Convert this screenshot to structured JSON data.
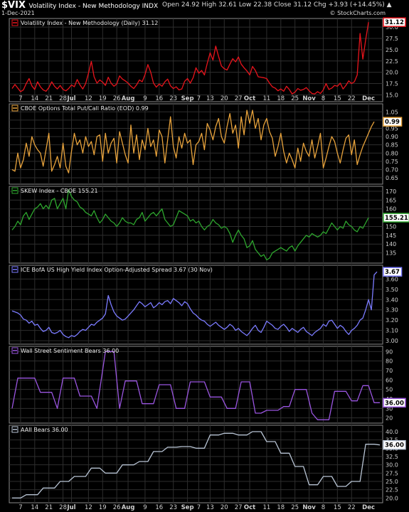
{
  "header": {
    "symbol": "$VIX",
    "name": "Volatility Index - New Methodology INDX",
    "date": "1-Dec-2021",
    "ohlc": "Open 24.92  High 32.61  Low 22.38  Close 31.12  Chg +3.93 (+14.45%) ▲",
    "credit": "© StockCharts.com"
  },
  "colors": {
    "background": "#000000",
    "grid": "#2e2e2e",
    "panel_border": "#8a8a8a"
  },
  "x_axis": {
    "labels": [
      {
        "text": "7",
        "i": 3
      },
      {
        "text": "14",
        "i": 8
      },
      {
        "text": "21",
        "i": 13
      },
      {
        "text": "28",
        "i": 18
      },
      {
        "text": "Jul",
        "i": 21,
        "bold": true
      },
      {
        "text": "12",
        "i": 27
      },
      {
        "text": "19",
        "i": 32
      },
      {
        "text": "26",
        "i": 37
      },
      {
        "text": "Aug",
        "i": 41,
        "bold": true
      },
      {
        "text": "9",
        "i": 47
      },
      {
        "text": "16",
        "i": 52
      },
      {
        "text": "23",
        "i": 57
      },
      {
        "text": "Sep",
        "i": 62,
        "bold": true
      },
      {
        "text": "7",
        "i": 66
      },
      {
        "text": "13",
        "i": 70
      },
      {
        "text": "20",
        "i": 75
      },
      {
        "text": "27",
        "i": 80
      },
      {
        "text": "Oct",
        "i": 84,
        "bold": true
      },
      {
        "text": "11",
        "i": 90
      },
      {
        "text": "18",
        "i": 95
      },
      {
        "text": "25",
        "i": 100
      },
      {
        "text": "Nov",
        "i": 105,
        "bold": true
      },
      {
        "text": "8",
        "i": 110
      },
      {
        "text": "15",
        "i": 115
      },
      {
        "text": "22",
        "i": 120
      },
      {
        "text": "Dec",
        "i": 126,
        "bold": true
      }
    ]
  },
  "chart_data": [
    {
      "type": "line",
      "title": "Volatility Index - New Methodology (Daily) 31.12",
      "color": "#e8141c",
      "last_label": "31.12",
      "ylim": [
        13.8,
        31.6
      ],
      "yticks": [
        "15.0",
        "17.5",
        "20.0",
        "22.5",
        "25.0",
        "27.5",
        "30.0"
      ],
      "values": [
        16.4,
        17.3,
        16.5,
        15.7,
        16.1,
        17.5,
        18.6,
        17.0,
        16.2,
        17.9,
        16.8,
        16.1,
        15.8,
        16.6,
        17.9,
        16.9,
        16.3,
        17.1,
        16.2,
        15.9,
        16.4,
        17.2,
        16.8,
        18.4,
        17.2,
        16.3,
        17.5,
        19.8,
        22.4,
        19.0,
        17.6,
        18.3,
        17.8,
        17.1,
        18.9,
        17.6,
        16.9,
        17.4,
        19.2,
        18.5,
        18.1,
        17.6,
        16.9,
        16.4,
        17.2,
        18.3,
        17.9,
        19.5,
        21.7,
        20.0,
        17.6,
        16.7,
        17.4,
        16.9,
        17.9,
        18.5,
        17.0,
        16.4,
        16.8,
        16.1,
        16.3,
        18.0,
        18.6,
        17.6,
        18.8,
        21.0,
        19.8,
        20.4,
        19.4,
        22.0,
        24.3,
        22.7,
        25.8,
        23.5,
        21.4,
        20.8,
        20.5,
        21.8,
        23.0,
        22.3,
        23.4,
        21.8,
        21.0,
        20.3,
        19.4,
        21.3,
        20.4,
        19.0,
        18.9,
        18.8,
        18.6,
        17.6,
        16.8,
        16.5,
        15.9,
        16.3,
        15.8,
        16.9,
        16.2,
        15.2,
        15.6,
        16.4,
        16.0,
        16.2,
        16.6,
        15.9,
        15.3,
        15.2,
        15.7,
        15.3,
        16.1,
        17.5,
        16.2,
        16.5,
        17.1,
        16.9,
        17.6,
        16.3,
        17.1,
        18.1,
        17.5,
        17.9,
        19.4,
        28.6,
        22.9,
        27.2,
        31.1
      ]
    },
    {
      "type": "line",
      "title": "CBOE Options Total Put/Call Ratio (EOD) 0.99",
      "color": "#e8a33c",
      "last_label": "0.99",
      "ylim": [
        0.62,
        1.09
      ],
      "yticks": [
        "0.65",
        "0.70",
        "0.75",
        "0.80",
        "0.85",
        "0.90",
        "0.95",
        "1.00",
        "1.05"
      ],
      "values": [
        0.7,
        0.69,
        0.8,
        0.71,
        0.76,
        0.86,
        0.78,
        0.9,
        0.85,
        0.82,
        0.8,
        0.72,
        0.82,
        0.92,
        0.69,
        0.73,
        0.78,
        0.71,
        0.86,
        0.72,
        0.68,
        0.81,
        0.92,
        0.85,
        0.88,
        0.8,
        0.9,
        0.84,
        0.87,
        0.79,
        0.9,
        0.91,
        0.75,
        0.92,
        0.8,
        0.86,
        0.89,
        0.74,
        0.93,
        0.86,
        0.79,
        0.74,
        0.97,
        0.8,
        0.91,
        0.76,
        0.88,
        0.82,
        0.95,
        0.84,
        0.88,
        0.78,
        0.94,
        0.9,
        0.74,
        0.88,
        1.02,
        0.84,
        0.77,
        0.9,
        0.83,
        0.92,
        0.86,
        0.88,
        0.73,
        0.85,
        0.87,
        0.92,
        0.82,
        0.98,
        0.94,
        0.88,
        0.96,
        1.01,
        0.9,
        0.86,
        0.96,
        1.04,
        0.92,
        0.97,
        0.83,
        1.02,
        0.91,
        1.06,
        0.98,
        1.06,
        0.95,
        1.01,
        0.88,
        0.97,
        1.01,
        0.93,
        0.89,
        0.78,
        0.84,
        0.92,
        0.81,
        0.74,
        0.8,
        0.76,
        0.71,
        0.83,
        0.75,
        0.86,
        0.81,
        0.78,
        0.88,
        0.77,
        0.84,
        0.92,
        0.71,
        0.77,
        0.84,
        0.9,
        0.87,
        0.8,
        0.74,
        0.82,
        0.89,
        0.91,
        0.79,
        0.88,
        0.73,
        0.79,
        0.84,
        0.88,
        0.92,
        0.96,
        0.99
      ]
    },
    {
      "type": "line",
      "title": "SKEW Index - CBOE 155.21",
      "color": "#2ea72e",
      "last_label": "155.21",
      "ylim": [
        130,
        172
      ],
      "yticks": [
        "135",
        "140",
        "145",
        "150",
        "155",
        "160",
        "165",
        "170"
      ],
      "values": [
        148,
        150,
        153,
        151,
        156,
        158,
        154,
        157,
        160,
        161,
        163,
        160,
        162,
        160,
        165,
        166,
        160,
        163,
        166,
        160,
        171,
        167,
        165,
        164,
        161,
        160,
        158,
        157,
        156,
        159,
        155,
        152,
        154,
        157,
        155,
        153,
        152,
        150,
        152,
        155,
        153,
        152,
        152,
        151,
        154,
        155,
        158,
        153,
        155,
        157,
        158,
        156,
        158,
        160,
        154,
        152,
        150,
        151,
        155,
        159,
        158,
        157,
        156,
        153,
        154,
        152,
        153,
        150,
        148,
        150,
        151,
        154,
        152,
        151,
        149,
        150,
        149,
        146,
        141,
        145,
        148,
        145,
        143,
        138,
        139,
        142,
        137,
        135,
        133,
        134,
        131,
        132,
        135,
        136,
        137,
        138,
        137,
        136,
        138,
        139,
        136,
        139,
        141,
        143,
        145,
        144,
        146,
        145,
        144,
        145,
        147,
        146,
        149,
        152,
        150,
        148,
        150,
        149,
        153,
        151,
        150,
        148,
        147,
        150,
        149,
        152,
        155
      ]
    },
    {
      "type": "line",
      "title": "ICE BofA US High Yield Index Option-Adjusted Spread 3.67 (30 Nov)",
      "color": "#7b7bff",
      "last_label": "3.67",
      "ylim": [
        2.98,
        3.72
      ],
      "yticks": [
        "3.00",
        "3.10",
        "3.20",
        "3.30",
        "3.40",
        "3.50",
        "3.60"
      ],
      "values": [
        3.29,
        3.28,
        3.27,
        3.25,
        3.21,
        3.2,
        3.17,
        3.19,
        3.15,
        3.16,
        3.12,
        3.09,
        3.1,
        3.13,
        3.08,
        3.07,
        3.08,
        3.1,
        3.06,
        3.04,
        3.03,
        3.05,
        3.04,
        3.06,
        3.09,
        3.11,
        3.1,
        3.13,
        3.16,
        3.15,
        3.18,
        3.2,
        3.22,
        3.26,
        3.44,
        3.35,
        3.28,
        3.24,
        3.22,
        3.2,
        3.21,
        3.24,
        3.27,
        3.3,
        3.34,
        3.38,
        3.36,
        3.33,
        3.35,
        3.37,
        3.32,
        3.34,
        3.37,
        3.35,
        3.38,
        3.39,
        3.36,
        3.41,
        3.39,
        3.37,
        3.34,
        3.38,
        3.36,
        3.31,
        3.27,
        3.25,
        3.22,
        3.2,
        3.19,
        3.16,
        3.14,
        3.16,
        3.18,
        3.15,
        3.13,
        3.11,
        3.13,
        3.16,
        3.14,
        3.1,
        3.12,
        3.09,
        3.07,
        3.05,
        3.08,
        3.12,
        3.15,
        3.1,
        3.08,
        3.13,
        3.19,
        3.17,
        3.15,
        3.12,
        3.11,
        3.14,
        3.16,
        3.13,
        3.09,
        3.12,
        3.1,
        3.08,
        3.11,
        3.13,
        3.09,
        3.07,
        3.05,
        3.08,
        3.1,
        3.12,
        3.16,
        3.14,
        3.19,
        3.2,
        3.16,
        3.12,
        3.15,
        3.13,
        3.09,
        3.06,
        3.1,
        3.12,
        3.15,
        3.2,
        3.22,
        3.3,
        3.4,
        3.3,
        3.64,
        3.67
      ]
    },
    {
      "type": "line",
      "title": "Wall Street Sentiment Bears 36.00",
      "step": true,
      "color": "#9a55e0",
      "last_label": "36.00",
      "ylim": [
        16,
        94
      ],
      "yticks": [
        "20",
        "30",
        "40",
        "50",
        "60",
        "70",
        "80",
        "90"
      ],
      "points": [
        [
          0,
          30
        ],
        [
          2,
          62
        ],
        [
          8,
          62
        ],
        [
          10,
          47
        ],
        [
          14,
          47
        ],
        [
          16,
          30
        ],
        [
          18,
          62
        ],
        [
          22,
          62
        ],
        [
          24,
          43
        ],
        [
          28,
          43
        ],
        [
          30,
          30
        ],
        [
          33,
          90
        ],
        [
          36,
          90
        ],
        [
          38,
          30
        ],
        [
          40,
          59
        ],
        [
          44,
          59
        ],
        [
          46,
          35
        ],
        [
          50,
          35
        ],
        [
          52,
          55
        ],
        [
          56,
          55
        ],
        [
          58,
          30
        ],
        [
          61,
          30
        ],
        [
          63,
          58
        ],
        [
          68,
          58
        ],
        [
          70,
          42
        ],
        [
          74,
          42
        ],
        [
          76,
          30
        ],
        [
          79,
          30
        ],
        [
          81,
          58
        ],
        [
          84,
          58
        ],
        [
          86,
          25
        ],
        [
          88,
          25
        ],
        [
          90,
          28
        ],
        [
          94,
          28
        ],
        [
          96,
          32
        ],
        [
          98,
          32
        ],
        [
          100,
          50
        ],
        [
          104,
          50
        ],
        [
          106,
          25
        ],
        [
          108,
          18
        ],
        [
          112,
          18
        ],
        [
          114,
          48
        ],
        [
          118,
          48
        ],
        [
          120,
          38
        ],
        [
          122,
          38
        ],
        [
          124,
          54
        ],
        [
          126,
          54
        ],
        [
          128,
          36
        ],
        [
          130,
          36
        ]
      ]
    },
    {
      "type": "line",
      "title": "AAII Bears 36.00",
      "step": true,
      "color": "#b8c4d4",
      "last_label": "36.00",
      "ylim": [
        19.0,
        41.5
      ],
      "yticks": [
        "20.0",
        "22.5",
        "25.0",
        "27.5",
        "30.0",
        "32.5",
        "35.0",
        "37.5",
        "40.0"
      ],
      "points": [
        [
          0,
          20
        ],
        [
          3,
          20
        ],
        [
          5,
          21
        ],
        [
          9,
          21
        ],
        [
          11,
          23
        ],
        [
          15,
          23
        ],
        [
          17,
          25
        ],
        [
          20,
          25
        ],
        [
          22,
          26.5
        ],
        [
          26,
          26.5
        ],
        [
          28,
          29
        ],
        [
          31,
          29
        ],
        [
          33,
          27.5
        ],
        [
          37,
          27.5
        ],
        [
          39,
          30
        ],
        [
          43,
          30
        ],
        [
          45,
          31
        ],
        [
          48,
          31
        ],
        [
          50,
          34
        ],
        [
          53,
          34
        ],
        [
          55,
          35.3
        ],
        [
          58,
          35.3
        ],
        [
          60,
          35.5
        ],
        [
          63,
          35.5
        ],
        [
          65,
          35
        ],
        [
          68,
          35
        ],
        [
          70,
          39
        ],
        [
          73,
          39
        ],
        [
          75,
          39.5
        ],
        [
          78,
          39.5
        ],
        [
          80,
          39
        ],
        [
          83,
          39
        ],
        [
          85,
          40
        ],
        [
          88,
          40
        ],
        [
          90,
          37
        ],
        [
          93,
          37
        ],
        [
          95,
          33.5
        ],
        [
          98,
          33.5
        ],
        [
          100,
          29.5
        ],
        [
          103,
          29.5
        ],
        [
          105,
          24
        ],
        [
          108,
          24
        ],
        [
          110,
          26.5
        ],
        [
          113,
          26.5
        ],
        [
          115,
          23.5
        ],
        [
          118,
          23.5
        ],
        [
          120,
          25
        ],
        [
          123,
          25
        ],
        [
          125,
          36.2
        ],
        [
          128,
          36.2
        ],
        [
          130,
          36
        ]
      ]
    }
  ]
}
